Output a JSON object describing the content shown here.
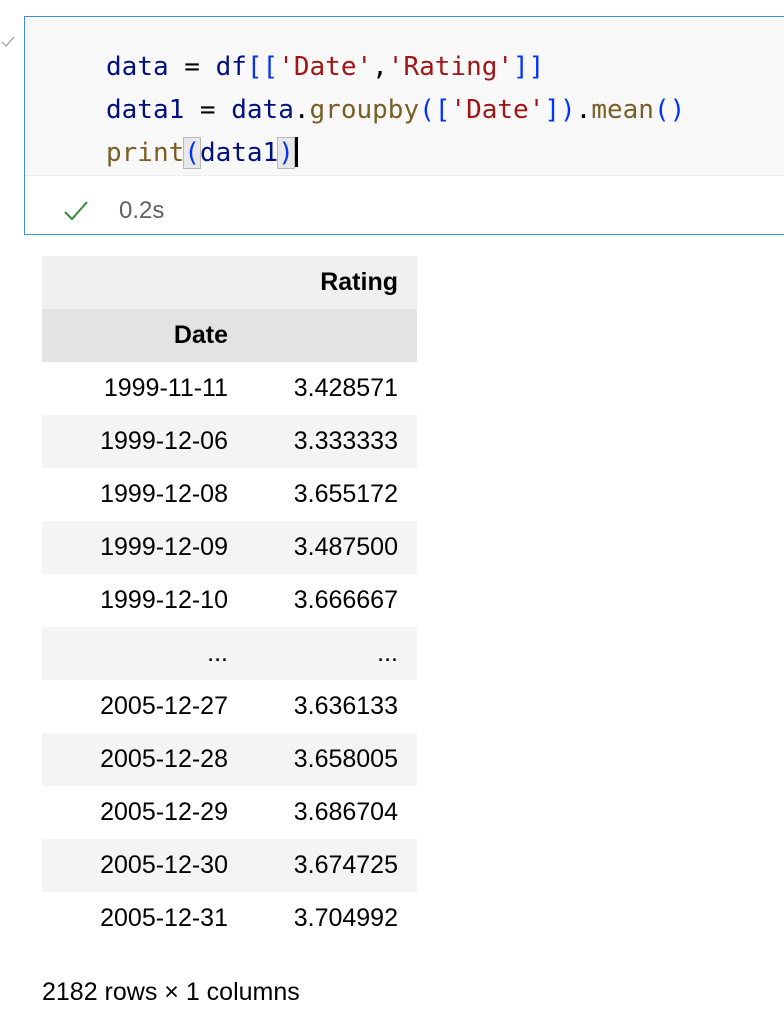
{
  "cell": {
    "code_lines": [
      [
        {
          "t": "data",
          "c": "var"
        },
        {
          "t": " = ",
          "c": "op"
        },
        {
          "t": "df",
          "c": "var"
        },
        {
          "t": "[[",
          "c": "br"
        },
        {
          "t": "'Date'",
          "c": "str"
        },
        {
          "t": ",",
          "c": "op"
        },
        {
          "t": "'Rating'",
          "c": "str"
        },
        {
          "t": "]]",
          "c": "br"
        }
      ],
      [
        {
          "t": "data1",
          "c": "var"
        },
        {
          "t": " = ",
          "c": "op"
        },
        {
          "t": "data",
          "c": "var"
        },
        {
          "t": ".",
          "c": "op"
        },
        {
          "t": "groupby",
          "c": "fn"
        },
        {
          "t": "(",
          "c": "par"
        },
        {
          "t": "[",
          "c": "br"
        },
        {
          "t": "'Date'",
          "c": "str"
        },
        {
          "t": "]",
          "c": "br"
        },
        {
          "t": ")",
          "c": "par"
        },
        {
          "t": ".",
          "c": "op"
        },
        {
          "t": "mean",
          "c": "fn"
        },
        {
          "t": "()",
          "c": "par"
        }
      ],
      [
        {
          "t": "print",
          "c": "fn"
        },
        {
          "t": "(",
          "c": "bm"
        },
        {
          "t": "data1",
          "c": "var"
        },
        {
          "t": ")",
          "c": "bm"
        },
        {
          "t": "",
          "c": "cursor"
        }
      ]
    ],
    "exec_time": "0.2s",
    "status_icon": "check-icon",
    "collapse_icon": "check-icon"
  },
  "dataframe": {
    "columns": [
      "Rating"
    ],
    "index_name": "Date",
    "rows": [
      [
        "1999-11-11",
        "3.428571"
      ],
      [
        "1999-12-06",
        "3.333333"
      ],
      [
        "1999-12-08",
        "3.655172"
      ],
      [
        "1999-12-09",
        "3.487500"
      ],
      [
        "1999-12-10",
        "3.666667"
      ],
      [
        "...",
        "..."
      ],
      [
        "2005-12-27",
        "3.636133"
      ],
      [
        "2005-12-28",
        "3.658005"
      ],
      [
        "2005-12-29",
        "3.686704"
      ],
      [
        "2005-12-30",
        "3.674725"
      ],
      [
        "2005-12-31",
        "3.704992"
      ]
    ],
    "shape_text": "2182 rows × 1 columns"
  },
  "colors": {
    "cell_border": "#3f8fd6",
    "success_check": "#388a34",
    "string": "#a31515",
    "function": "#795e26",
    "variable": "#001080",
    "bracket": "#0431fa"
  }
}
